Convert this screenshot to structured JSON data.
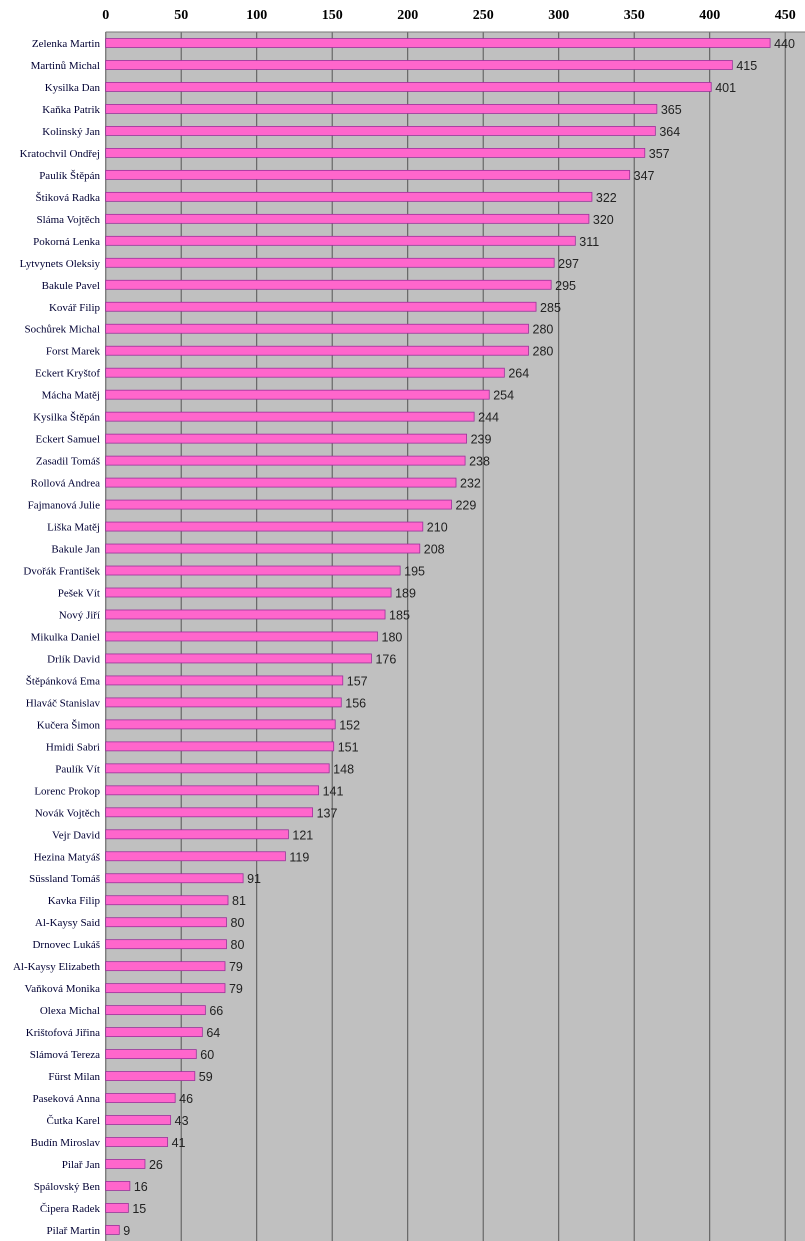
{
  "chart_data": {
    "type": "bar",
    "orientation": "horizontal",
    "title": "",
    "xlabel": "",
    "ylabel": "",
    "xlim": [
      0,
      463
    ],
    "xticks": [
      0,
      50,
      100,
      150,
      200,
      250,
      300,
      350,
      400,
      450
    ],
    "tick_labels": [
      "0",
      "50",
      "100",
      "150",
      "200",
      "250",
      "300",
      "350",
      "400",
      "450"
    ],
    "x_axis_position": "top",
    "grid": true,
    "colors": {
      "bar": "#ff66cc",
      "bar_border": "#993399",
      "plot_bg": "#c0c0c0",
      "grid": "#555555"
    },
    "categories": [
      "Zelenka Martin",
      "Martinů Michal",
      "Kysilka Dan",
      "Kaňka Patrik",
      "Kolinský Jan",
      "Kratochvil Ondřej",
      "Paulík Štěpán",
      "Štiková Radka",
      "Sláma Vojtěch",
      "Pokorná Lenka",
      "Lytvynets Oleksiy",
      "Bakule Pavel",
      "Kovář Filip",
      "Sochůrek Michal",
      "Forst Marek",
      "Eckert Kryštof",
      "Mácha Matěj",
      "Kysilka Štěpán",
      "Eckert Samuel",
      "Zasadil Tomáš",
      "Rollová Andrea",
      "Fajmanová Julie",
      "Liška Matěj",
      "Bakule Jan",
      "Dvořák František",
      "Pešek Vít",
      "Nový Jiří",
      "Mikulka Daniel",
      "Drlík David",
      "Štěpánková Ema",
      "Hlaváč Stanislav",
      "Kučera Šimon",
      "Hmidi Sabri",
      "Paulík Vít",
      "Lorenc Prokop",
      "Novák Vojtěch",
      "Vejr David",
      "Hezina Matyáš",
      "Süssland Tomáš",
      "Kavka Filip",
      "Al-Kaysy Said",
      "Drnovec Lukáš",
      "Al-Kaysy Elizabeth",
      "Vaňková Monika",
      "Olexa Michal",
      "Krištofová Jiřina",
      "Slámová Tereza",
      "Fürst Milan",
      "Paseková Anna",
      "Čutka Karel",
      "Budín Miroslav",
      "Pilař Jan",
      "Spálovský Ben",
      "Čipera Radek",
      "Pilař Martin"
    ],
    "values": [
      440,
      415,
      401,
      365,
      364,
      357,
      347,
      322,
      320,
      311,
      297,
      295,
      285,
      280,
      280,
      264,
      254,
      244,
      239,
      238,
      232,
      229,
      210,
      208,
      195,
      189,
      185,
      180,
      176,
      157,
      156,
      152,
      151,
      148,
      141,
      137,
      121,
      119,
      91,
      81,
      80,
      80,
      79,
      79,
      66,
      64,
      60,
      59,
      46,
      43,
      41,
      26,
      16,
      15,
      9
    ]
  }
}
